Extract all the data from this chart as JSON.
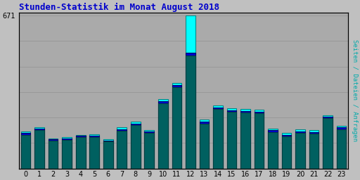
{
  "title": "Stunden-Statistik im Monat August 2018",
  "title_color": "#0000cc",
  "title_fontsize": 9,
  "background_color": "#c0c0c0",
  "plot_bg_color": "#aaaaaa",
  "ylabel_right": "Seiten / Dateien / Anfragen",
  "ylabel_right_color": "#00aaaa",
  "hours": [
    0,
    1,
    2,
    3,
    4,
    5,
    6,
    7,
    8,
    9,
    10,
    11,
    12,
    13,
    14,
    15,
    16,
    17,
    18,
    19,
    20,
    21,
    22,
    23
  ],
  "ytick_label": "671",
  "ymax": 671,
  "anfragen": [
    162,
    182,
    133,
    138,
    148,
    150,
    128,
    180,
    205,
    170,
    305,
    375,
    671,
    215,
    278,
    263,
    260,
    258,
    175,
    155,
    172,
    168,
    235,
    188
  ],
  "dateien": [
    155,
    175,
    128,
    132,
    143,
    145,
    124,
    173,
    198,
    162,
    295,
    365,
    508,
    205,
    268,
    255,
    252,
    250,
    168,
    148,
    164,
    160,
    228,
    180
  ],
  "seiten": [
    148,
    168,
    122,
    125,
    137,
    138,
    118,
    166,
    190,
    155,
    285,
    358,
    495,
    198,
    260,
    248,
    245,
    243,
    160,
    140,
    157,
    153,
    220,
    172
  ],
  "color_anfragen": "#00ffff",
  "color_dateien": "#0000cd",
  "color_seiten": "#006060",
  "edge_anfragen": "#008888",
  "edge_dateien": "#000066",
  "edge_seiten": "#004040",
  "bar_width": 0.7,
  "grid_color": "#999999",
  "grid_linewidth": 0.7,
  "num_gridlines": 6,
  "border_color": "#000000",
  "tick_fontsize": 7
}
